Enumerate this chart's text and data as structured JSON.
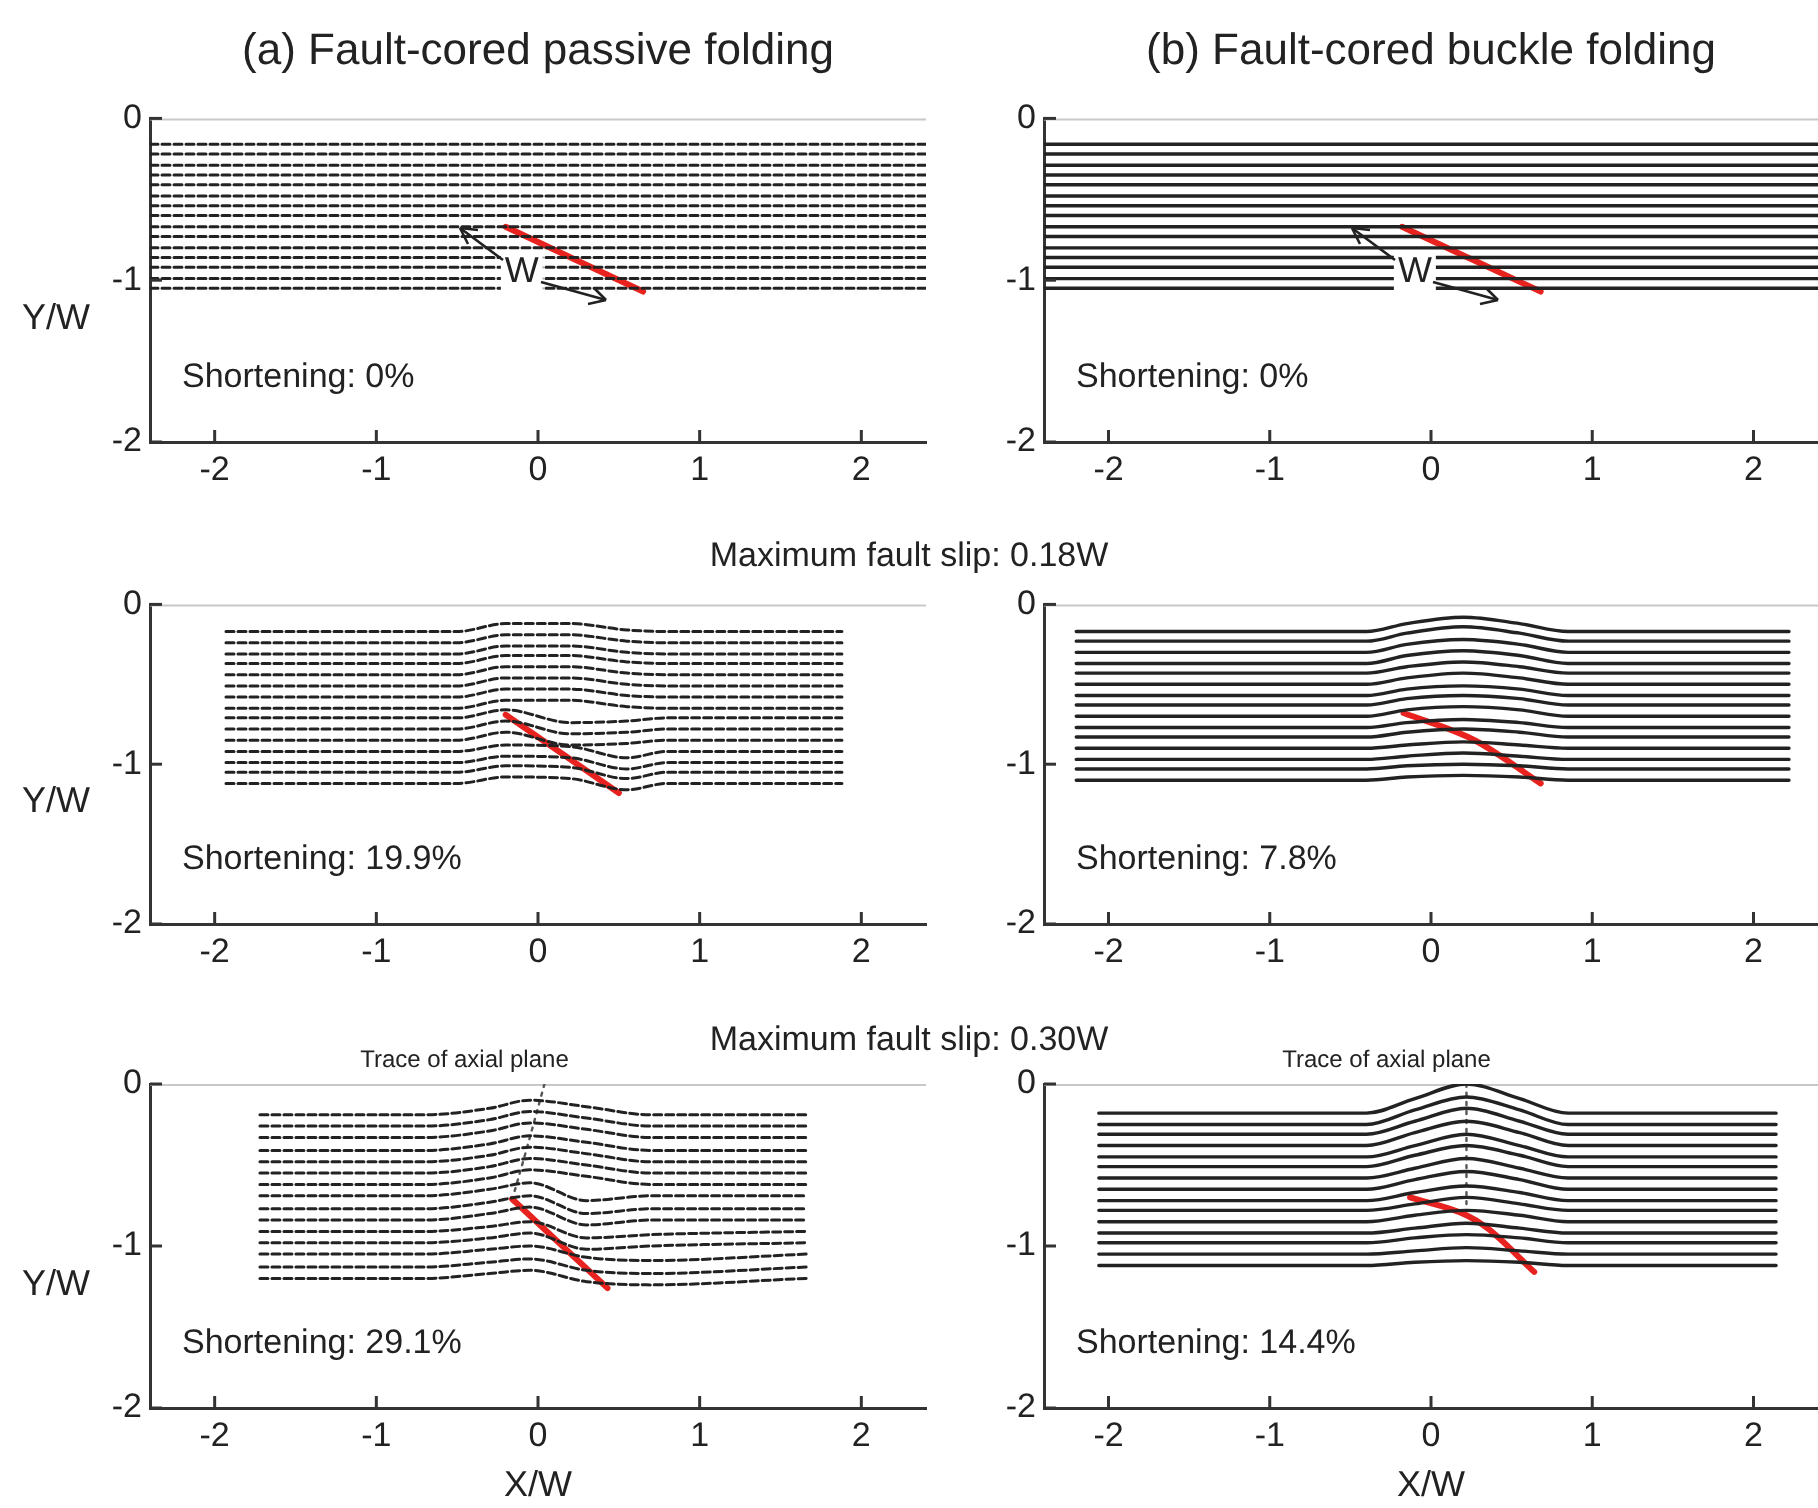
{
  "chart_data": [
    {
      "type": "line",
      "title": "(a) Fault-cored passive folding",
      "ylabel": "Y/W",
      "xlim": [
        -2.4,
        2.4
      ],
      "ylim": [
        -2,
        0
      ],
      "xticks": [
        -2,
        -1,
        0,
        1,
        2
      ],
      "yticks": [
        -2,
        -1,
        0
      ],
      "marker": "none",
      "line_style": "dashed",
      "annotations": [
        "Shortening: 0%",
        {
          "text": "W",
          "x": -0.1,
          "y": -0.95
        }
      ],
      "x": [
        -2.4,
        2.4
      ],
      "series": [
        {
          "color": "#222222",
          "values": [
            -0.16,
            -0.16
          ]
        },
        {
          "color": "#222222",
          "values": [
            -0.22,
            -0.22
          ]
        },
        {
          "color": "#222222",
          "values": [
            -0.29,
            -0.29
          ]
        },
        {
          "color": "#222222",
          "values": [
            -0.35,
            -0.35
          ]
        },
        {
          "color": "#222222",
          "values": [
            -0.41,
            -0.41
          ]
        },
        {
          "color": "#222222",
          "values": [
            -0.48,
            -0.48
          ]
        },
        {
          "color": "#222222",
          "values": [
            -0.54,
            -0.54
          ]
        },
        {
          "color": "#222222",
          "values": [
            -0.6,
            -0.6
          ]
        },
        {
          "color": "#222222",
          "values": [
            -0.67,
            -0.67
          ]
        },
        {
          "color": "#222222",
          "values": [
            -0.73,
            -0.73
          ]
        },
        {
          "color": "#222222",
          "values": [
            -0.8,
            -0.8
          ]
        },
        {
          "color": "#222222",
          "values": [
            -0.86,
            -0.86
          ]
        },
        {
          "color": "#222222",
          "values": [
            -0.92,
            -0.92
          ]
        },
        {
          "color": "#222222",
          "values": [
            -0.99,
            -0.99
          ]
        },
        {
          "color": "#222222",
          "values": [
            -1.05,
            -1.05
          ]
        },
        {
          "color": "#e8231f",
          "line_style": "solid",
          "x": [
            -0.2,
            0.65
          ],
          "values": [
            -0.67,
            -1.07
          ]
        }
      ]
    },
    {
      "type": "line",
      "title": "(b) Fault-cored buckle folding",
      "xlim": [
        -2.4,
        2.4
      ],
      "ylim": [
        -2,
        0
      ],
      "xticks": [
        -2,
        -1,
        0,
        1,
        2
      ],
      "yticks": [
        -2,
        -1,
        0
      ],
      "marker": "none",
      "line_style": "solid",
      "annotations": [
        "Shortening: 0%",
        {
          "text": "W",
          "x": -0.1,
          "y": -0.95
        }
      ],
      "x": [
        -2.4,
        2.4
      ],
      "series": [
        {
          "color": "#222222",
          "values": [
            -0.16,
            -0.16
          ]
        },
        {
          "color": "#222222",
          "values": [
            -0.22,
            -0.22
          ]
        },
        {
          "color": "#222222",
          "values": [
            -0.29,
            -0.29
          ]
        },
        {
          "color": "#222222",
          "values": [
            -0.35,
            -0.35
          ]
        },
        {
          "color": "#222222",
          "values": [
            -0.41,
            -0.41
          ]
        },
        {
          "color": "#222222",
          "values": [
            -0.48,
            -0.48
          ]
        },
        {
          "color": "#222222",
          "values": [
            -0.54,
            -0.54
          ]
        },
        {
          "color": "#222222",
          "values": [
            -0.6,
            -0.6
          ]
        },
        {
          "color": "#222222",
          "values": [
            -0.67,
            -0.67
          ]
        },
        {
          "color": "#222222",
          "values": [
            -0.73,
            -0.73
          ]
        },
        {
          "color": "#222222",
          "values": [
            -0.8,
            -0.8
          ]
        },
        {
          "color": "#222222",
          "values": [
            -0.86,
            -0.86
          ]
        },
        {
          "color": "#222222",
          "values": [
            -0.92,
            -0.92
          ]
        },
        {
          "color": "#222222",
          "values": [
            -0.99,
            -0.99
          ]
        },
        {
          "color": "#222222",
          "values": [
            -1.05,
            -1.05
          ]
        },
        {
          "color": "#e8231f",
          "line_style": "solid",
          "x": [
            -0.18,
            0.68
          ],
          "values": [
            -0.67,
            -1.07
          ]
        }
      ]
    },
    {
      "type": "line",
      "subtitle": "Maximum fault slip: 0.18W",
      "ylabel": "Y/W",
      "xlim": [
        -2.4,
        2.4
      ],
      "ylim": [
        -2,
        0
      ],
      "xticks": [
        -2,
        -1,
        0,
        1,
        2
      ],
      "yticks": [
        -2,
        -1,
        0
      ],
      "marker": "none",
      "line_style": "dashed",
      "annotations": [
        "Shortening: 19.9%"
      ],
      "x": [
        -1.93,
        -0.5,
        -0.2,
        0.2,
        0.55,
        0.8,
        1.88
      ],
      "series": [
        {
          "color": "#222222",
          "values": [
            -0.17,
            -0.17,
            -0.12,
            -0.12,
            -0.16,
            -0.17,
            -0.17
          ]
        },
        {
          "color": "#222222",
          "values": [
            -0.24,
            -0.24,
            -0.19,
            -0.19,
            -0.23,
            -0.24,
            -0.24
          ]
        },
        {
          "color": "#222222",
          "values": [
            -0.31,
            -0.31,
            -0.26,
            -0.26,
            -0.3,
            -0.31,
            -0.31
          ]
        },
        {
          "color": "#222222",
          "values": [
            -0.37,
            -0.37,
            -0.32,
            -0.32,
            -0.36,
            -0.37,
            -0.37
          ]
        },
        {
          "color": "#222222",
          "values": [
            -0.44,
            -0.44,
            -0.39,
            -0.39,
            -0.43,
            -0.44,
            -0.44
          ]
        },
        {
          "color": "#222222",
          "values": [
            -0.51,
            -0.51,
            -0.46,
            -0.46,
            -0.5,
            -0.51,
            -0.51
          ]
        },
        {
          "color": "#222222",
          "values": [
            -0.58,
            -0.58,
            -0.53,
            -0.53,
            -0.57,
            -0.58,
            -0.58
          ]
        },
        {
          "color": "#222222",
          "values": [
            -0.65,
            -0.65,
            -0.6,
            -0.6,
            -0.64,
            -0.65,
            -0.65
          ]
        },
        {
          "color": "#222222",
          "values": [
            -0.71,
            -0.71,
            -0.66,
            -0.74,
            -0.73,
            -0.71,
            -0.71
          ]
        },
        {
          "color": "#222222",
          "values": [
            -0.78,
            -0.78,
            -0.73,
            -0.81,
            -0.8,
            -0.78,
            -0.78
          ]
        },
        {
          "color": "#222222",
          "values": [
            -0.85,
            -0.85,
            -0.8,
            -0.88,
            -0.87,
            -0.85,
            -0.85
          ]
        },
        {
          "color": "#222222",
          "values": [
            -0.92,
            -0.92,
            -0.88,
            -0.89,
            -0.96,
            -0.92,
            -0.92
          ]
        },
        {
          "color": "#222222",
          "values": [
            -0.99,
            -0.99,
            -0.95,
            -0.96,
            -1.03,
            -0.99,
            -0.99
          ]
        },
        {
          "color": "#222222",
          "values": [
            -1.05,
            -1.05,
            -1.01,
            -1.02,
            -1.09,
            -1.05,
            -1.05
          ]
        },
        {
          "color": "#222222",
          "values": [
            -1.12,
            -1.12,
            -1.08,
            -1.09,
            -1.16,
            -1.12,
            -1.12
          ]
        },
        {
          "color": "#e8231f",
          "line_style": "solid",
          "x": [
            -0.2,
            0.5
          ],
          "values": [
            -0.69,
            -1.18
          ]
        }
      ]
    },
    {
      "type": "line",
      "xlim": [
        -2.4,
        2.4
      ],
      "ylim": [
        -2,
        0
      ],
      "xticks": [
        -2,
        -1,
        0,
        1,
        2
      ],
      "yticks": [
        -2,
        -1,
        0
      ],
      "marker": "none",
      "line_style": "solid",
      "annotations": [
        "Shortening: 7.8%"
      ],
      "x": [
        -2.2,
        -0.4,
        -0.15,
        0.2,
        0.55,
        0.85,
        2.22
      ],
      "series": [
        {
          "color": "#222222",
          "values": [
            -0.17,
            -0.17,
            -0.12,
            -0.08,
            -0.12,
            -0.17,
            -0.17
          ]
        },
        {
          "color": "#222222",
          "values": [
            -0.23,
            -0.23,
            -0.18,
            -0.14,
            -0.18,
            -0.23,
            -0.23
          ]
        },
        {
          "color": "#222222",
          "values": [
            -0.3,
            -0.3,
            -0.25,
            -0.22,
            -0.25,
            -0.3,
            -0.3
          ]
        },
        {
          "color": "#222222",
          "values": [
            -0.37,
            -0.37,
            -0.32,
            -0.29,
            -0.32,
            -0.37,
            -0.37
          ]
        },
        {
          "color": "#222222",
          "values": [
            -0.43,
            -0.43,
            -0.39,
            -0.36,
            -0.39,
            -0.43,
            -0.43
          ]
        },
        {
          "color": "#222222",
          "values": [
            -0.5,
            -0.5,
            -0.46,
            -0.43,
            -0.46,
            -0.5,
            -0.5
          ]
        },
        {
          "color": "#222222",
          "values": [
            -0.57,
            -0.57,
            -0.53,
            -0.51,
            -0.53,
            -0.57,
            -0.57
          ]
        },
        {
          "color": "#222222",
          "values": [
            -0.63,
            -0.63,
            -0.59,
            -0.57,
            -0.59,
            -0.63,
            -0.63
          ]
        },
        {
          "color": "#222222",
          "values": [
            -0.7,
            -0.7,
            -0.66,
            -0.64,
            -0.66,
            -0.7,
            -0.7
          ]
        },
        {
          "color": "#222222",
          "values": [
            -0.77,
            -0.77,
            -0.74,
            -0.72,
            -0.74,
            -0.77,
            -0.77
          ]
        },
        {
          "color": "#222222",
          "values": [
            -0.83,
            -0.83,
            -0.8,
            -0.78,
            -0.8,
            -0.83,
            -0.83
          ]
        },
        {
          "color": "#222222",
          "values": [
            -0.9,
            -0.9,
            -0.88,
            -0.86,
            -0.88,
            -0.9,
            -0.9
          ]
        },
        {
          "color": "#222222",
          "values": [
            -0.97,
            -0.97,
            -0.95,
            -0.93,
            -0.95,
            -0.97,
            -0.97
          ]
        },
        {
          "color": "#222222",
          "values": [
            -1.03,
            -1.03,
            -1.01,
            -1,
            -1.01,
            -1.03,
            -1.03
          ]
        },
        {
          "color": "#222222",
          "values": [
            -1.1,
            -1.1,
            -1.08,
            -1.07,
            -1.08,
            -1.1,
            -1.1
          ]
        },
        {
          "color": "#e8231f",
          "line_style": "solid",
          "x": [
            -0.17,
            0.27,
            0.68
          ],
          "values": [
            -0.68,
            -0.85,
            -1.12
          ]
        }
      ]
    },
    {
      "type": "line",
      "subtitle": "Maximum fault slip: 0.30W",
      "xlabel": "X/W",
      "ylabel": "Y/W",
      "xlim": [
        -2.4,
        2.4
      ],
      "ylim": [
        -2,
        0
      ],
      "xticks": [
        -2,
        -1,
        0,
        1,
        2
      ],
      "yticks": [
        -2,
        -1,
        0
      ],
      "marker": "none",
      "line_style": "dashed",
      "annotations": [
        "Shortening: 29.1%"
      ],
      "x": [
        -1.72,
        -0.7,
        -0.3,
        -0.05,
        0.3,
        0.7,
        1.66
      ],
      "series": [
        {
          "color": "#222222",
          "values": [
            -0.19,
            -0.19,
            -0.15,
            -0.1,
            -0.14,
            -0.19,
            -0.19
          ]
        },
        {
          "color": "#222222",
          "values": [
            -0.26,
            -0.26,
            -0.22,
            -0.17,
            -0.21,
            -0.26,
            -0.26
          ]
        },
        {
          "color": "#222222",
          "values": [
            -0.33,
            -0.33,
            -0.29,
            -0.24,
            -0.28,
            -0.33,
            -0.33
          ]
        },
        {
          "color": "#222222",
          "values": [
            -0.41,
            -0.41,
            -0.37,
            -0.32,
            -0.36,
            -0.41,
            -0.41
          ]
        },
        {
          "color": "#222222",
          "values": [
            -0.48,
            -0.48,
            -0.44,
            -0.39,
            -0.43,
            -0.48,
            -0.48
          ]
        },
        {
          "color": "#222222",
          "values": [
            -0.55,
            -0.55,
            -0.51,
            -0.46,
            -0.5,
            -0.55,
            -0.55
          ]
        },
        {
          "color": "#222222",
          "values": [
            -0.62,
            -0.62,
            -0.58,
            -0.53,
            -0.57,
            -0.62,
            -0.62
          ]
        },
        {
          "color": "#222222",
          "values": [
            -0.69,
            -0.69,
            -0.65,
            -0.61,
            -0.72,
            -0.69,
            -0.69
          ]
        },
        {
          "color": "#222222",
          "values": [
            -0.77,
            -0.77,
            -0.73,
            -0.69,
            -0.8,
            -0.77,
            -0.77
          ]
        },
        {
          "color": "#222222",
          "values": [
            -0.84,
            -0.84,
            -0.8,
            -0.76,
            -0.87,
            -0.84,
            -0.84
          ]
        },
        {
          "color": "#222222",
          "values": [
            -0.91,
            -0.91,
            -0.88,
            -0.85,
            -0.95,
            -0.93,
            -0.91
          ]
        },
        {
          "color": "#222222",
          "values": [
            -0.98,
            -0.98,
            -0.95,
            -0.92,
            -1.02,
            -1,
            -0.98
          ]
        },
        {
          "color": "#222222",
          "values": [
            -1.05,
            -1.05,
            -1.02,
            -1,
            -1.07,
            -1.09,
            -1.05
          ]
        },
        {
          "color": "#222222",
          "values": [
            -1.13,
            -1.13,
            -1.1,
            -1.08,
            -1.15,
            -1.17,
            -1.13
          ]
        },
        {
          "color": "#222222",
          "values": [
            -1.2,
            -1.2,
            -1.17,
            -1.15,
            -1.22,
            -1.24,
            -1.2
          ]
        },
        {
          "name": "Trace of axial plane",
          "color": "#555555",
          "line_style": "dotted",
          "x": [
            0.04,
            -0.07,
            -0.15
          ],
          "values": [
            0,
            -0.4,
            -0.68
          ]
        },
        {
          "color": "#e8231f",
          "line_style": "solid",
          "x": [
            -0.16,
            0.43
          ],
          "values": [
            -0.71,
            -1.26
          ]
        }
      ]
    },
    {
      "type": "line",
      "xlabel": "X/W",
      "xlim": [
        -2.4,
        2.4
      ],
      "ylim": [
        -2,
        0
      ],
      "xticks": [
        -2,
        -1,
        0,
        1,
        2
      ],
      "yticks": [
        -2,
        -1,
        0
      ],
      "marker": "none",
      "line_style": "solid",
      "annotations": [
        "Shortening: 14.4%"
      ],
      "x": [
        -2.06,
        -0.4,
        -0.1,
        0.22,
        0.55,
        0.85,
        2.14
      ],
      "series": [
        {
          "color": "#222222",
          "values": [
            -0.18,
            -0.18,
            -0.09,
            0,
            -0.09,
            -0.18,
            -0.18
          ]
        },
        {
          "color": "#222222",
          "values": [
            -0.25,
            -0.25,
            -0.16,
            -0.08,
            -0.16,
            -0.25,
            -0.25
          ]
        },
        {
          "color": "#222222",
          "values": [
            -0.31,
            -0.31,
            -0.23,
            -0.15,
            -0.23,
            -0.31,
            -0.31
          ]
        },
        {
          "color": "#222222",
          "values": [
            -0.38,
            -0.38,
            -0.3,
            -0.23,
            -0.3,
            -0.38,
            -0.38
          ]
        },
        {
          "color": "#222222",
          "values": [
            -0.45,
            -0.45,
            -0.38,
            -0.31,
            -0.38,
            -0.45,
            -0.45
          ]
        },
        {
          "color": "#222222",
          "values": [
            -0.51,
            -0.51,
            -0.44,
            -0.38,
            -0.44,
            -0.51,
            -0.51
          ]
        },
        {
          "color": "#222222",
          "values": [
            -0.58,
            -0.58,
            -0.52,
            -0.46,
            -0.52,
            -0.58,
            -0.58
          ]
        },
        {
          "color": "#222222",
          "values": [
            -0.65,
            -0.65,
            -0.59,
            -0.54,
            -0.59,
            -0.65,
            -0.65
          ]
        },
        {
          "color": "#222222",
          "values": [
            -0.72,
            -0.72,
            -0.67,
            -0.63,
            -0.67,
            -0.72,
            -0.72
          ]
        },
        {
          "color": "#222222",
          "values": [
            -0.78,
            -0.78,
            -0.74,
            -0.7,
            -0.74,
            -0.78,
            -0.78
          ]
        },
        {
          "color": "#222222",
          "values": [
            -0.85,
            -0.85,
            -0.81,
            -0.78,
            -0.81,
            -0.85,
            -0.85
          ]
        },
        {
          "color": "#222222",
          "values": [
            -0.92,
            -0.92,
            -0.89,
            -0.86,
            -0.89,
            -0.92,
            -0.92
          ]
        },
        {
          "color": "#222222",
          "values": [
            -0.98,
            -0.98,
            -0.95,
            -0.93,
            -0.95,
            -0.98,
            -0.98
          ]
        },
        {
          "color": "#222222",
          "values": [
            -1.05,
            -1.05,
            -1.03,
            -1.01,
            -1.03,
            -1.05,
            -1.05
          ]
        },
        {
          "color": "#222222",
          "values": [
            -1.12,
            -1.12,
            -1.1,
            -1.09,
            -1.1,
            -1.12,
            -1.12
          ]
        },
        {
          "name": "Trace of axial plane",
          "color": "#555555",
          "line_style": "dotted",
          "x": [
            0.22,
            0.22
          ],
          "values": [
            0,
            -0.75
          ]
        },
        {
          "color": "#e8231f",
          "line_style": "solid",
          "x": [
            -0.13,
            0.22,
            0.35,
            0.64
          ],
          "values": [
            -0.7,
            -0.81,
            -0.89,
            -1.16
          ]
        }
      ]
    }
  ]
}
